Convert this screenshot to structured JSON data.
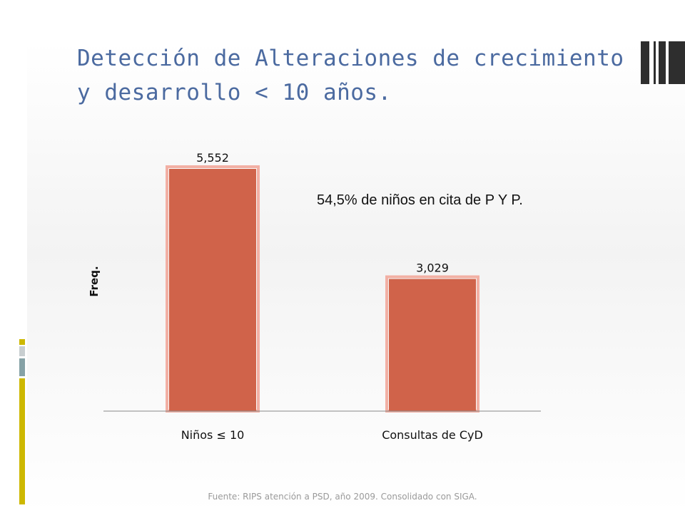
{
  "title": "Detección de Alteraciones de crecimiento y desarrollo < 10 años.",
  "annotation": "54,5% de niños en cita de P Y P.",
  "source": "Fuente: RIPS atención a PSD, año 2009. Consolidado con SIGA.",
  "colors": {
    "bar": "#d0634a",
    "bar_glow": "#f2b0a4",
    "title": "#4b6aa0",
    "accent_yellow": "#cdb800",
    "accent_teal": "#86a2a6",
    "accent_gray": "#c8ced0",
    "dark": "#2e2e2e"
  },
  "chart_data": {
    "type": "bar",
    "categories": [
      "Niños ≤ 10",
      "Consultas de CyD"
    ],
    "values": [
      5552,
      3029
    ],
    "data_labels": [
      "5,552",
      "3,029"
    ],
    "title": "",
    "xlabel": "",
    "ylabel": "Freq.",
    "ylim": [
      0,
      5552
    ],
    "grid": false,
    "legend": "none"
  }
}
